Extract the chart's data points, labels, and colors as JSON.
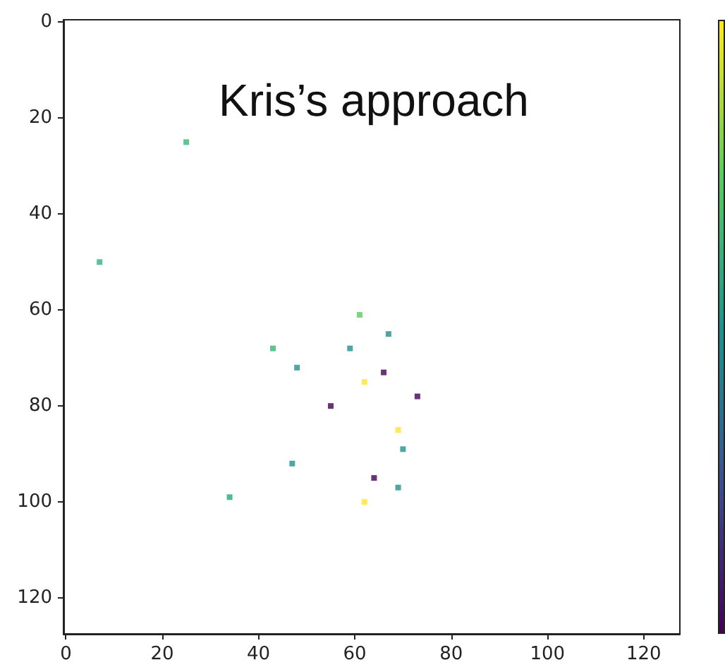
{
  "chart_data": {
    "type": "scatter",
    "annotations": [
      "Kris’s approach"
    ],
    "x": [
      25,
      7,
      61,
      67,
      43,
      59,
      48,
      66,
      62,
      73,
      55,
      69,
      70,
      47,
      64,
      69,
      34,
      62
    ],
    "values": [
      25,
      50,
      61,
      65,
      68,
      68,
      72,
      73,
      75,
      78,
      80,
      85,
      89,
      92,
      95,
      97,
      99,
      100
    ],
    "colors": [
      "#35b779",
      "#2fb47c",
      "#5ec962",
      "#21918c",
      "#35b779",
      "#21918c",
      "#21918c",
      "#440154",
      "#fde725",
      "#440154",
      "#440154",
      "#fde725",
      "#21918c",
      "#21918c",
      "#440154",
      "#21918c",
      "#22a884",
      "#fde725"
    ],
    "xlim": [
      -0.5,
      127.5
    ],
    "xticks": [
      0,
      20,
      40,
      60,
      80,
      100,
      120
    ],
    "ylim": [
      127.5,
      -0.5
    ],
    "yticks": [
      0,
      20,
      40,
      60,
      80,
      100,
      120
    ],
    "marker": "square",
    "grid": false
  }
}
